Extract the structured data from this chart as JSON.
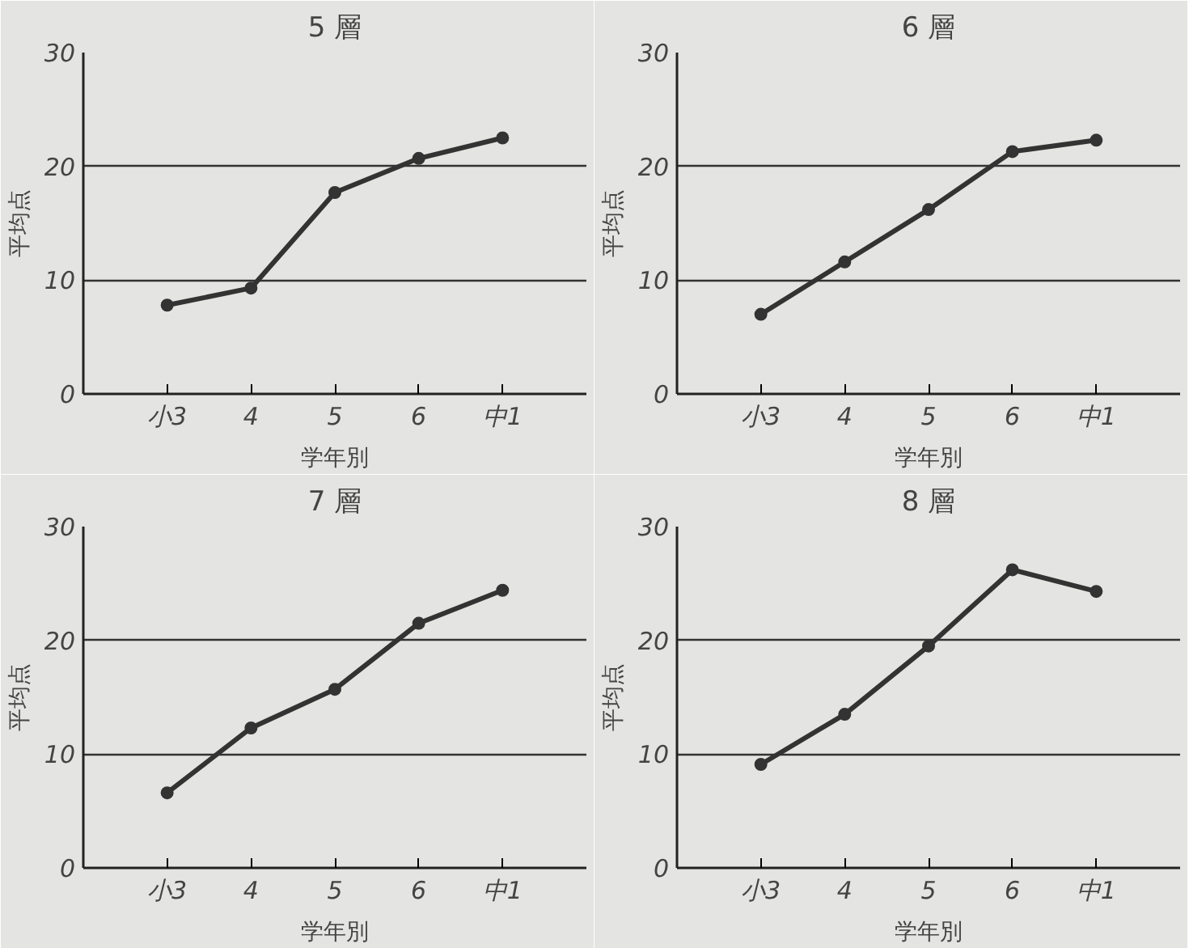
{
  "chart_data": [
    {
      "type": "line",
      "title": "5 層",
      "xlabel": "学年別",
      "ylabel": "平均点",
      "categories": [
        "小3",
        "4",
        "5",
        "6",
        "中1"
      ],
      "values": [
        7.8,
        9.3,
        17.7,
        20.7,
        22.5
      ],
      "color": "#333333",
      "ylim": [
        0,
        30
      ],
      "yticks": [
        0,
        10,
        20,
        30
      ],
      "grid": "y",
      "marker": "circle"
    },
    {
      "type": "line",
      "title": "6 層",
      "xlabel": "学年別",
      "ylabel": "平均点",
      "categories": [
        "小3",
        "4",
        "5",
        "6",
        "中1"
      ],
      "values": [
        7.0,
        11.6,
        16.2,
        21.3,
        22.3
      ],
      "color": "#333333",
      "ylim": [
        0,
        30
      ],
      "yticks": [
        0,
        10,
        20,
        30
      ],
      "grid": "y",
      "marker": "circle"
    },
    {
      "type": "line",
      "title": "7 層",
      "xlabel": "学年別",
      "ylabel": "平均点",
      "categories": [
        "小3",
        "4",
        "5",
        "6",
        "中1"
      ],
      "values": [
        6.6,
        12.3,
        15.7,
        21.5,
        24.4
      ],
      "color": "#333333",
      "ylim": [
        0,
        30
      ],
      "yticks": [
        0,
        10,
        20,
        30
      ],
      "grid": "y",
      "marker": "circle"
    },
    {
      "type": "line",
      "title": "8 層",
      "xlabel": "学年別",
      "ylabel": "平均点",
      "categories": [
        "小3",
        "4",
        "5",
        "6",
        "中1"
      ],
      "values": [
        9.1,
        13.5,
        19.5,
        26.2,
        24.3
      ],
      "color": "#333333",
      "ylim": [
        0,
        30
      ],
      "yticks": [
        0,
        10,
        20,
        30
      ],
      "grid": "y",
      "marker": "circle"
    }
  ]
}
